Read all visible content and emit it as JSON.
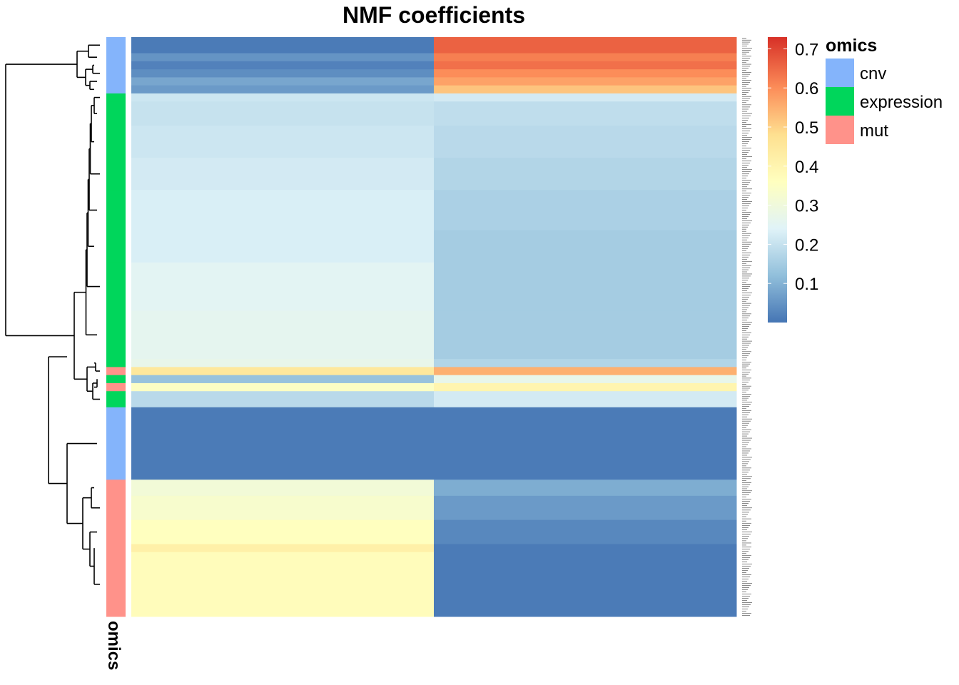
{
  "chart_data": {
    "type": "heatmap",
    "title": "NMF coefficients",
    "annotation_title": "omics",
    "annotation_track_label": "omics",
    "annotation_categories": [
      {
        "name": "cnv",
        "color": "#84b4fb"
      },
      {
        "name": "expression",
        "color": "#00d65b"
      },
      {
        "name": "mut",
        "color": "#ff928a"
      }
    ],
    "columns": 2,
    "color_scale": {
      "min": 0.0,
      "max": 0.73,
      "stops": [
        {
          "value": 0.0,
          "color": "#4575b4"
        },
        {
          "value": 0.12,
          "color": "#91bfdb"
        },
        {
          "value": 0.24,
          "color": "#e0f3f8"
        },
        {
          "value": 0.36,
          "color": "#ffffbf"
        },
        {
          "value": 0.48,
          "color": "#fee090"
        },
        {
          "value": 0.6,
          "color": "#fc8d59"
        },
        {
          "value": 0.73,
          "color": "#d73027"
        }
      ],
      "ticks": [
        0.1,
        0.2,
        0.3,
        0.4,
        0.5,
        0.6,
        0.7
      ]
    },
    "row_blocks": [
      {
        "omics": "cnv",
        "rows": 2,
        "values": [
          0.01,
          0.66
        ]
      },
      {
        "omics": "cnv",
        "rows": 1,
        "values": [
          0.05,
          0.62
        ]
      },
      {
        "omics": "cnv",
        "rows": 1,
        "values": [
          0.02,
          0.64
        ]
      },
      {
        "omics": "cnv",
        "rows": 1,
        "values": [
          0.04,
          0.6
        ]
      },
      {
        "omics": "cnv",
        "rows": 1,
        "values": [
          0.08,
          0.57
        ]
      },
      {
        "omics": "cnv",
        "rows": 1,
        "values": [
          0.06,
          0.52
        ]
      },
      {
        "omics": "expression",
        "rows": 1,
        "values": [
          0.21,
          0.22
        ]
      },
      {
        "omics": "expression",
        "rows": 3,
        "values": [
          0.2,
          0.19
        ]
      },
      {
        "omics": "expression",
        "rows": 4,
        "values": [
          0.21,
          0.18
        ]
      },
      {
        "omics": "expression",
        "rows": 4,
        "values": [
          0.22,
          0.17
        ]
      },
      {
        "omics": "expression",
        "rows": 5,
        "values": [
          0.23,
          0.16
        ]
      },
      {
        "omics": "expression",
        "rows": 4,
        "values": [
          0.23,
          0.15
        ]
      },
      {
        "omics": "expression",
        "rows": 6,
        "values": [
          0.25,
          0.15
        ]
      },
      {
        "omics": "expression",
        "rows": 6,
        "values": [
          0.26,
          0.15
        ]
      },
      {
        "omics": "expression",
        "rows": 1,
        "values": [
          0.27,
          0.17
        ]
      },
      {
        "omics": "mut",
        "rows": 1,
        "values": [
          0.45,
          0.55
        ]
      },
      {
        "omics": "expression",
        "rows": 1,
        "values": [
          0.13,
          0.27
        ]
      },
      {
        "omics": "mut",
        "rows": 1,
        "values": [
          0.35,
          0.4
        ]
      },
      {
        "omics": "expression",
        "rows": 2,
        "values": [
          0.18,
          0.22
        ]
      },
      {
        "omics": "cnv",
        "rows": 9,
        "values": [
          0.01,
          0.01
        ]
      },
      {
        "omics": "mut",
        "rows": 2,
        "values": [
          0.31,
          0.09
        ]
      },
      {
        "omics": "mut",
        "rows": 3,
        "values": [
          0.33,
          0.06
        ]
      },
      {
        "omics": "mut",
        "rows": 3,
        "values": [
          0.36,
          0.03
        ]
      },
      {
        "omics": "mut",
        "rows": 1,
        "values": [
          0.42,
          0.01
        ]
      },
      {
        "omics": "mut",
        "rows": 8,
        "values": [
          0.37,
          0.01
        ]
      }
    ]
  }
}
